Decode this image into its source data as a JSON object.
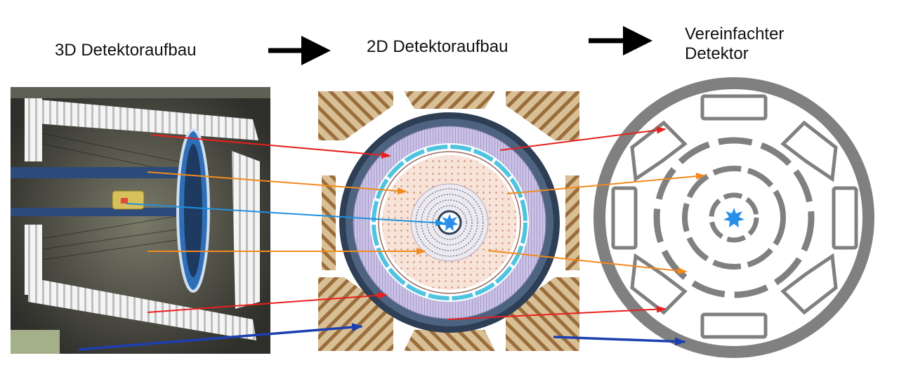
{
  "labels": {
    "step1": "3D Detektoraufbau",
    "step2": "2D Detektoraufbau",
    "step3_line1": "Vereinfachter",
    "step3_line2": "Detektor"
  },
  "colors": {
    "calorimeter_arrow": "#e8201e",
    "tracker_arrow": "#f28a1e",
    "vertex_arrow": "#1e90e0",
    "muon_arrow": "#1e3fb0",
    "simplified_detector": "#808080",
    "collision_point": "#2a8fe8"
  }
}
